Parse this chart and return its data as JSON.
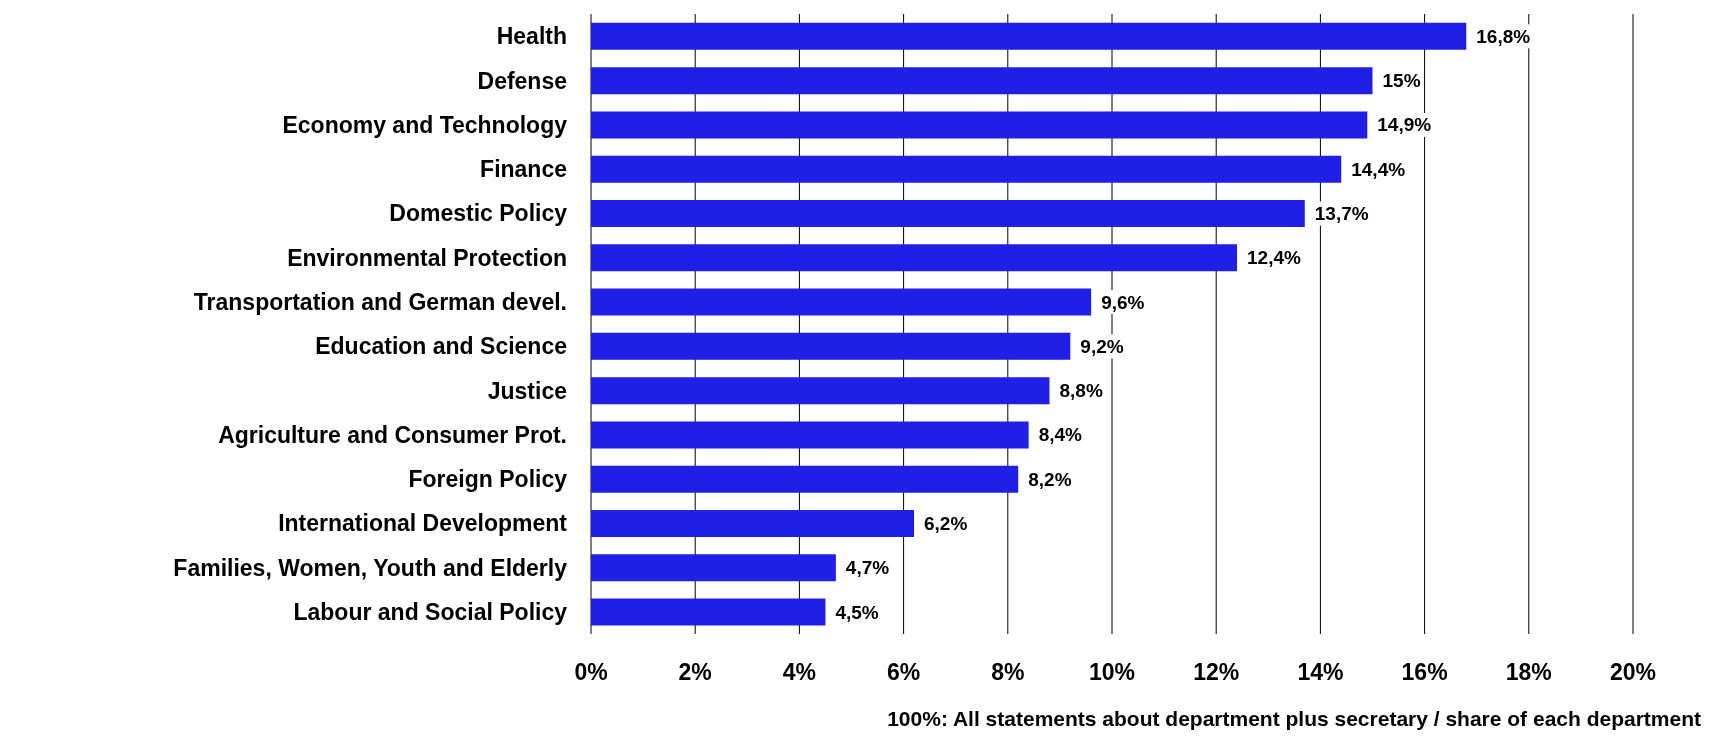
{
  "chart_data": {
    "type": "bar",
    "orientation": "horizontal",
    "xlabel": "100%: All statements about department plus secretary / share of each department",
    "categories": [
      "Health",
      "Defense",
      "Economy and Technology",
      "Finance",
      "Domestic Policy",
      "Environmental Protection",
      "Transportation and German devel.",
      "Education and Science",
      "Justice",
      "Agriculture and Consumer Prot.",
      "Foreign Policy",
      "International Development",
      "Families, Women, Youth and Elderly",
      "Labour and Social Policy"
    ],
    "values": [
      16.8,
      15,
      14.9,
      14.4,
      13.7,
      12.4,
      9.6,
      9.2,
      8.8,
      8.4,
      8.2,
      6.2,
      4.7,
      4.5
    ],
    "value_labels": [
      "16,8%",
      "15%",
      "14,9%",
      "14,4%",
      "13,7%",
      "12,4%",
      "9,6%",
      "9,2%",
      "8,8%",
      "8,4%",
      "8,2%",
      "6,2%",
      "4,7%",
      "4,5%"
    ],
    "color": "#1f1fe6",
    "xlim": [
      0,
      20
    ],
    "xticks": [
      {
        "value": 0,
        "label": "0%"
      },
      {
        "value": 2,
        "label": "2%"
      },
      {
        "value": 4,
        "label": "4%"
      },
      {
        "value": 6,
        "label": "6%"
      },
      {
        "value": 8,
        "label": "8%"
      },
      {
        "value": 10,
        "label": "10%"
      },
      {
        "value": 12,
        "label": "12%"
      },
      {
        "value": 14,
        "label": "14%"
      },
      {
        "value": 16,
        "label": "16%"
      },
      {
        "value": 18,
        "label": "18%"
      },
      {
        "value": 20,
        "label": "20%"
      }
    ],
    "grid": "x"
  }
}
